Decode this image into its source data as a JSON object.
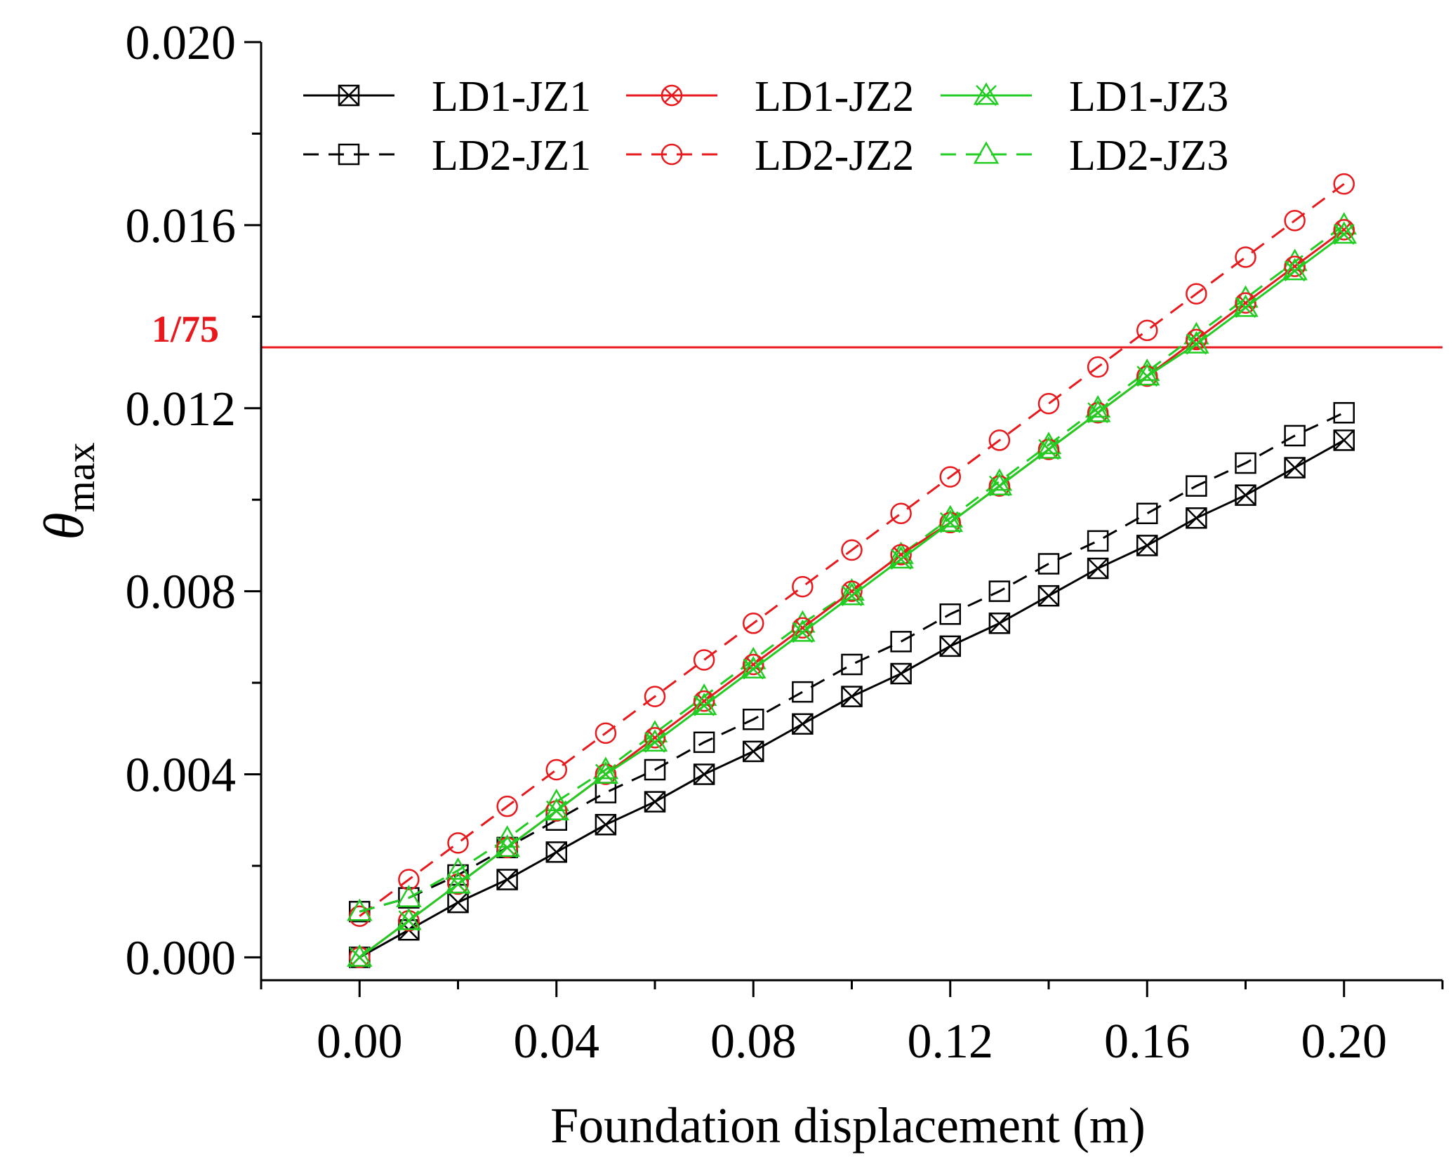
{
  "chart_data": {
    "type": "line",
    "title": "",
    "xlabel": "Foundation displacement (m)",
    "ylabel": {
      "symbol": "θ",
      "subscript": "max"
    },
    "xlim": [
      -0.02,
      0.22
    ],
    "ylim": [
      -0.0005,
      0.02
    ],
    "x_ticks": [
      "0.00",
      "0.04",
      "0.08",
      "0.12",
      "0.16",
      "0.20"
    ],
    "y_ticks": [
      "0.000",
      "0.004",
      "0.008",
      "0.012",
      "0.016",
      "0.020"
    ],
    "x": [
      0.0,
      0.01,
      0.02,
      0.03,
      0.04,
      0.05,
      0.06,
      0.07,
      0.08,
      0.09,
      0.1,
      0.11,
      0.12,
      0.13,
      0.14,
      0.15,
      0.16,
      0.17,
      0.18,
      0.19,
      0.2
    ],
    "reference_line": {
      "label": "1/75",
      "value": 0.01333,
      "color": "#e8191c"
    },
    "series": [
      {
        "name": "LD1-JZ1",
        "color": "#000000",
        "dash": "solid",
        "marker": "boxed-x",
        "values": [
          0.0,
          0.0006,
          0.0012,
          0.0017,
          0.0023,
          0.0029,
          0.0034,
          0.004,
          0.0045,
          0.0051,
          0.0057,
          0.0062,
          0.0068,
          0.0073,
          0.0079,
          0.0085,
          0.009,
          0.0096,
          0.0101,
          0.0107,
          0.0113
        ]
      },
      {
        "name": "LD1-JZ2",
        "color": "#e8191c",
        "dash": "solid",
        "marker": "circle-x",
        "values": [
          0.0,
          0.0008,
          0.0016,
          0.0024,
          0.0032,
          0.004,
          0.0048,
          0.0056,
          0.0064,
          0.0072,
          0.008,
          0.0088,
          0.0095,
          0.0103,
          0.0111,
          0.0119,
          0.0127,
          0.0135,
          0.0143,
          0.0151,
          0.0159
        ]
      },
      {
        "name": "LD1-JZ3",
        "color": "#22cc22",
        "dash": "solid",
        "marker": "star",
        "values": [
          0.0,
          0.0008,
          0.0016,
          0.0024,
          0.0032,
          0.004,
          0.0047,
          0.0055,
          0.0063,
          0.0071,
          0.0079,
          0.0087,
          0.0095,
          0.0103,
          0.0111,
          0.0119,
          0.0127,
          0.0134,
          0.0142,
          0.015,
          0.0158
        ]
      },
      {
        "name": "LD2-JZ1",
        "color": "#000000",
        "dash": "dashed",
        "marker": "square",
        "values": [
          0.001,
          0.0013,
          0.0018,
          0.0024,
          0.003,
          0.0036,
          0.0041,
          0.0047,
          0.0052,
          0.0058,
          0.0064,
          0.0069,
          0.0075,
          0.008,
          0.0086,
          0.0091,
          0.0097,
          0.0103,
          0.0108,
          0.0114,
          0.0119
        ]
      },
      {
        "name": "LD2-JZ2",
        "color": "#e8191c",
        "dash": "dashed",
        "marker": "circle",
        "values": [
          0.0009,
          0.0017,
          0.0025,
          0.0033,
          0.0041,
          0.0049,
          0.0057,
          0.0065,
          0.0073,
          0.0081,
          0.0089,
          0.0097,
          0.0105,
          0.0113,
          0.0121,
          0.0129,
          0.0137,
          0.0145,
          0.0153,
          0.0161,
          0.0169
        ]
      },
      {
        "name": "LD2-JZ3",
        "color": "#22cc22",
        "dash": "dashed",
        "marker": "triangle",
        "values": [
          0.001,
          0.0013,
          0.0019,
          0.0026,
          0.0034,
          0.0041,
          0.0049,
          0.0057,
          0.0065,
          0.0073,
          0.008,
          0.0088,
          0.0096,
          0.0104,
          0.0112,
          0.012,
          0.0128,
          0.0136,
          0.0144,
          0.0152,
          0.016
        ]
      }
    ]
  }
}
